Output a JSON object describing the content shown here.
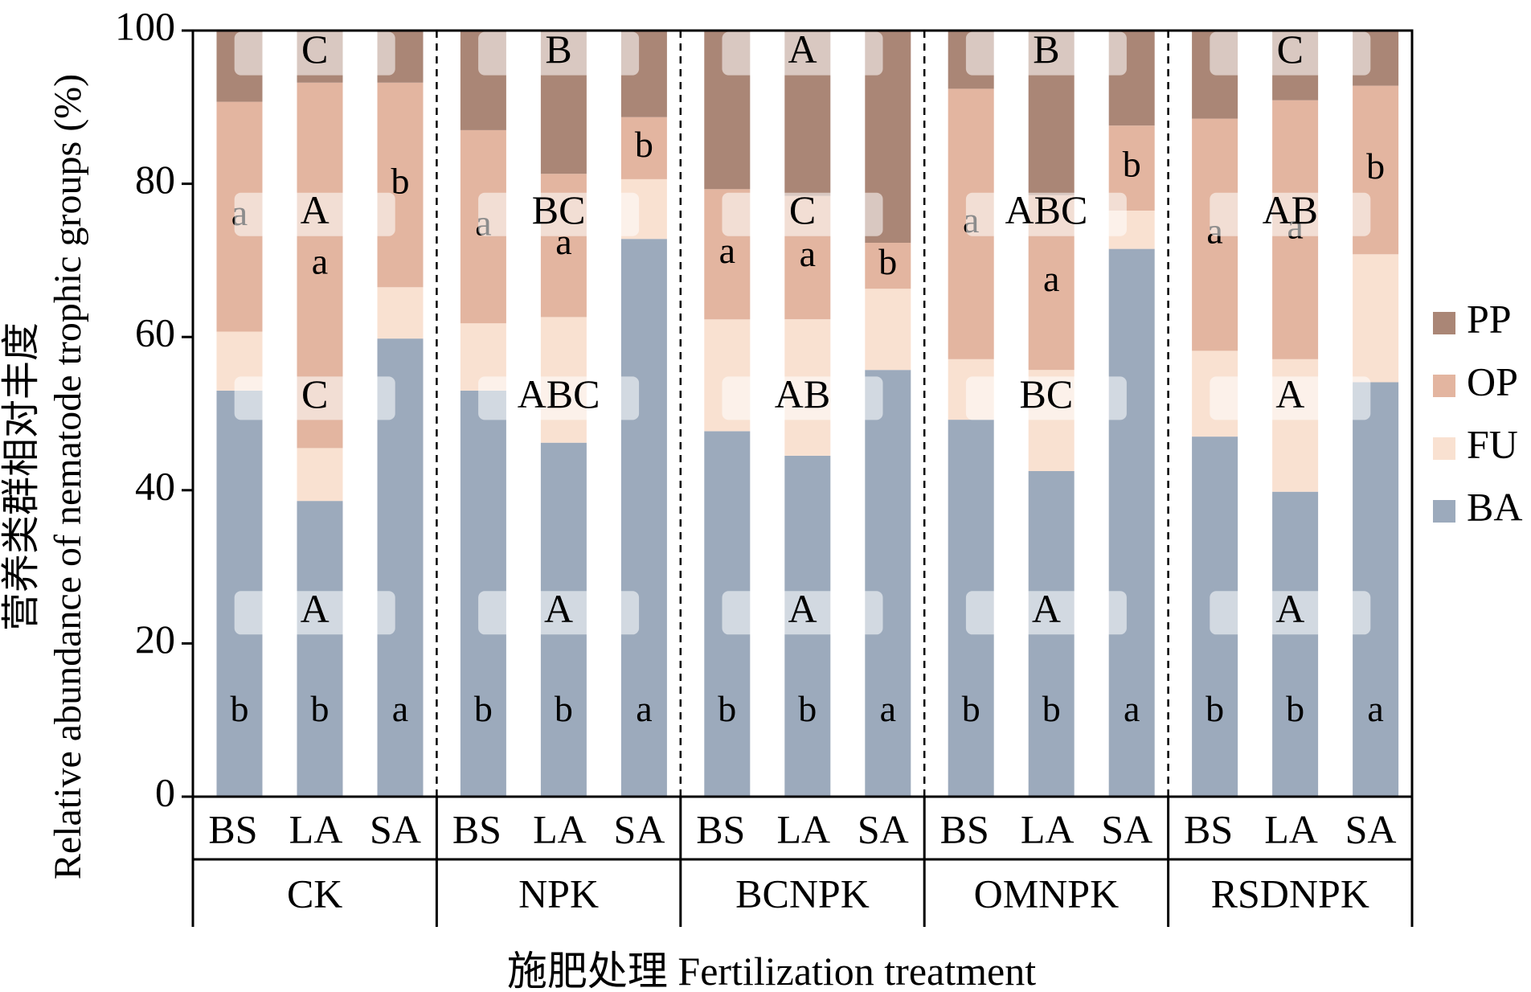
{
  "chart_data": {
    "type": "bar",
    "stacked": true,
    "xlabel": "施肥处理 Fertilization treatment",
    "ylabel_cn": "营养类群相对丰度",
    "ylabel_en": "Relative abundance of nematode trophic groups (%)",
    "ylim": [
      0,
      100
    ],
    "yticks": [
      "0",
      "20",
      "40",
      "60",
      "80",
      "100"
    ],
    "legend_position": "right",
    "series": [
      {
        "name": "BA",
        "color": "#9caabc"
      },
      {
        "name": "FU",
        "color": "#f9e1d1"
      },
      {
        "name": "OP",
        "color": "#e3b5a0"
      },
      {
        "name": "PP",
        "color": "#aa8676"
      }
    ],
    "legend_order": [
      "PP",
      "OP",
      "FU",
      "BA"
    ],
    "groups": [
      {
        "name": "CK",
        "bars": [
          {
            "label": "BS",
            "BA": 53,
            "FU": 7.7,
            "OP": 30,
            "PP": 9.3
          },
          {
            "label": "LA",
            "BA": 38.6,
            "FU": 6.9,
            "OP": 47.7,
            "PP": 6.8
          },
          {
            "label": "SA",
            "BA": 59.8,
            "FU": 6.7,
            "OP": 26.7,
            "PP": 6.8
          }
        ],
        "sig_lower": [
          "b",
          "b",
          "a"
        ],
        "sig_upper": [
          "a",
          "a",
          "b"
        ],
        "caps": [
          "A",
          "C",
          "A",
          "C"
        ]
      },
      {
        "name": "NPK",
        "bars": [
          {
            "label": "BS",
            "BA": 53,
            "FU": 8.8,
            "OP": 25.2,
            "PP": 13
          },
          {
            "label": "LA",
            "BA": 46.2,
            "FU": 16.4,
            "OP": 18.7,
            "PP": 18.7
          },
          {
            "label": "SA",
            "BA": 72.8,
            "FU": 7.8,
            "OP": 8.1,
            "PP": 11.3
          }
        ],
        "sig_lower": [
          "b",
          "b",
          "a"
        ],
        "sig_upper": [
          "a",
          "a",
          "b"
        ],
        "caps": [
          "A",
          "ABC",
          "BC",
          "B"
        ]
      },
      {
        "name": "BCNPK",
        "bars": [
          {
            "label": "BS",
            "BA": 47.7,
            "FU": 14.6,
            "OP": 17,
            "PP": 20.7
          },
          {
            "label": "LA",
            "BA": 44.5,
            "FU": 17.8,
            "OP": 16.1,
            "PP": 21.6
          },
          {
            "label": "SA",
            "BA": 55.7,
            "FU": 10.6,
            "OP": 6,
            "PP": 27.7
          }
        ],
        "sig_lower": [
          "b",
          "b",
          "a"
        ],
        "sig_upper": [
          "a",
          "a",
          "b"
        ],
        "caps": [
          "A",
          "AB",
          "C",
          "A"
        ]
      },
      {
        "name": "OMNPK",
        "bars": [
          {
            "label": "BS",
            "BA": 49.2,
            "FU": 7.9,
            "OP": 35.3,
            "PP": 7.6
          },
          {
            "label": "LA",
            "BA": 42.5,
            "FU": 13.2,
            "OP": 22.8,
            "PP": 21.5
          },
          {
            "label": "SA",
            "BA": 71.5,
            "FU": 5,
            "OP": 11.1,
            "PP": 12.4
          }
        ],
        "sig_lower": [
          "b",
          "b",
          "a"
        ],
        "sig_upper": [
          "a",
          "a",
          "b"
        ],
        "caps": [
          "A",
          "BC",
          "ABC",
          "B"
        ]
      },
      {
        "name": "RSDNPK",
        "bars": [
          {
            "label": "BS",
            "BA": 47,
            "FU": 11.2,
            "OP": 30.3,
            "PP": 11.5
          },
          {
            "label": "LA",
            "BA": 39.8,
            "FU": 17.3,
            "OP": 33.8,
            "PP": 9.1
          },
          {
            "label": "SA",
            "BA": 54.1,
            "FU": 16.7,
            "OP": 22,
            "PP": 7.2
          }
        ],
        "sig_lower": [
          "b",
          "b",
          "a"
        ],
        "sig_upper": [
          "a",
          "a",
          "b"
        ],
        "caps": [
          "A",
          "A",
          "AB",
          "C"
        ]
      }
    ]
  }
}
